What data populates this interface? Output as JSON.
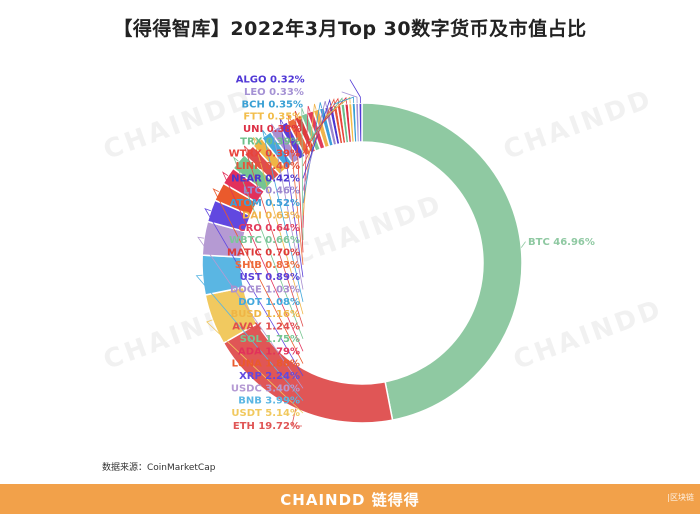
{
  "title": "【得得智库】2022年3月Top 30数字货币及市值占比",
  "source_text": "数据来源：CoinMarketCap",
  "footer": {
    "brand": "CHAINDD 链得得",
    "note": "|区块链"
  },
  "watermark": "CHAINDD",
  "chart_data": {
    "type": "pie",
    "donut": true,
    "slices": [
      {
        "label": "BTC",
        "value": 46.96,
        "text": "BTC 46.96%",
        "color": "#8fc9a2"
      },
      {
        "label": "ETH",
        "value": 19.72,
        "text": "ETH 19.72%",
        "color": "#e05656"
      },
      {
        "label": "USDT",
        "value": 5.14,
        "text": "USDT 5.14%",
        "color": "#f1c95f"
      },
      {
        "label": "BNB",
        "value": 3.99,
        "text": "BNB 3.99%",
        "color": "#5ab6e3"
      },
      {
        "label": "USDC",
        "value": 3.4,
        "text": "USDC 3.40%",
        "color": "#b59ad3"
      },
      {
        "label": "XRP",
        "value": 2.24,
        "text": "XRP 2.24%",
        "color": "#6148e0"
      },
      {
        "label": "LUNA",
        "value": 1.88,
        "text": "LUNA 1.88%",
        "color": "#ea5a2c"
      },
      {
        "label": "ADA",
        "value": 1.79,
        "text": "ADA 1.79%",
        "color": "#e2315b"
      },
      {
        "label": "SOL",
        "value": 1.75,
        "text": "SOL 1.75%",
        "color": "#76c590"
      },
      {
        "label": "AVAX",
        "value": 1.24,
        "text": "AVAX 1.24%",
        "color": "#e04d4d"
      },
      {
        "label": "BUSD",
        "value": 1.16,
        "text": "BUSD 1.16%",
        "color": "#efb545"
      },
      {
        "label": "DOT",
        "value": 1.08,
        "text": "DOT 1.08%",
        "color": "#43a9dc"
      },
      {
        "label": "DOGE",
        "value": 1.03,
        "text": "DOGE 1.03%",
        "color": "#a88fd0"
      },
      {
        "label": "UST",
        "value": 0.89,
        "text": "UST 0.89%",
        "color": "#5a3fd8"
      },
      {
        "label": "SHIB",
        "value": 0.83,
        "text": "SHIB 0.83%",
        "color": "#ee6a3a"
      },
      {
        "label": "MATIC",
        "value": 0.7,
        "text": "MATIC 0.70%",
        "color": "#dd3a3a"
      },
      {
        "label": "WBTC",
        "value": 0.66,
        "text": "WBTC 0.66%",
        "color": "#7cc69a"
      },
      {
        "label": "CRO",
        "value": 0.64,
        "text": "CRO 0.64%",
        "color": "#e23c5a"
      },
      {
        "label": "DAI",
        "value": 0.63,
        "text": "DAI 0.63%",
        "color": "#f0b44c"
      },
      {
        "label": "ATOM",
        "value": 0.52,
        "text": "ATOM 0.52%",
        "color": "#3d9fd8"
      },
      {
        "label": "LTC",
        "value": 0.46,
        "text": "LTC 0.46%",
        "color": "#9b86cf"
      },
      {
        "label": "NEAR",
        "value": 0.42,
        "text": "NEAR 0.42%",
        "color": "#4b35cf"
      },
      {
        "label": "LINK",
        "value": 0.4,
        "text": "LINK 0.40%",
        "color": "#e4533a"
      },
      {
        "label": "WTRX",
        "value": 0.39,
        "text": "WTRX 0.39%",
        "color": "#e8433a"
      },
      {
        "label": "TRX",
        "value": 0.39,
        "text": "TRX 0.39%",
        "color": "#6cbf8a"
      },
      {
        "label": "UNI",
        "value": 0.38,
        "text": "UNI 0.38%",
        "color": "#dc2f45"
      },
      {
        "label": "FTT",
        "value": 0.35,
        "text": "FTT 0.35%",
        "color": "#f2bd4a"
      },
      {
        "label": "BCH",
        "value": 0.35,
        "text": "BCH 0.35%",
        "color": "#3aa0d4"
      },
      {
        "label": "LEO",
        "value": 0.33,
        "text": "LEO 0.33%",
        "color": "#a592d4"
      },
      {
        "label": "ALGO",
        "value": 0.32,
        "text": "ALGO 0.32%",
        "color": "#5038d6"
      }
    ]
  }
}
